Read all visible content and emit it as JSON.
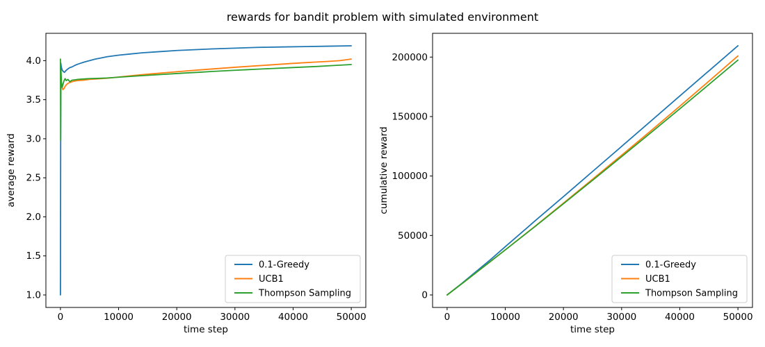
{
  "figure": {
    "title": "rewards for bandit problem with simulated environment",
    "background_color": "#ffffff",
    "text_color": "#000000",
    "series_colors": {
      "greedy": "#1f77b4",
      "ucb1": "#ff7f0e",
      "thompson": "#2ca02c"
    }
  },
  "chart_data": [
    {
      "id": "average-reward",
      "type": "line",
      "title": "",
      "xlabel": "time step",
      "ylabel": "average reward",
      "xlim": [
        -2500,
        52500
      ],
      "ylim": [
        0.84,
        4.35
      ],
      "grid": false,
      "legend_location": "lower right",
      "xticks": {
        "values": [
          0,
          10000,
          20000,
          30000,
          40000,
          50000
        ],
        "labels": [
          "0",
          "10000",
          "20000",
          "30000",
          "40000",
          "50000"
        ]
      },
      "yticks": {
        "values": [
          1.0,
          1.5,
          2.0,
          2.5,
          3.0,
          3.5,
          4.0
        ],
        "labels": [
          "1.0",
          "1.5",
          "2.0",
          "2.5",
          "3.0",
          "3.5",
          "4.0"
        ]
      },
      "series": [
        {
          "name": "0.1-Greedy",
          "color": "#1f77b4",
          "points": [
            [
              0,
              1.0
            ],
            [
              60,
              3.97
            ],
            [
              150,
              3.92
            ],
            [
              300,
              3.88
            ],
            [
              500,
              3.86
            ],
            [
              700,
              3.85
            ],
            [
              900,
              3.87
            ],
            [
              1200,
              3.89
            ],
            [
              1600,
              3.91
            ],
            [
              2000,
              3.92
            ],
            [
              2500,
              3.94
            ],
            [
              3000,
              3.955
            ],
            [
              4000,
              3.98
            ],
            [
              5000,
              4.0
            ],
            [
              6000,
              4.02
            ],
            [
              7000,
              4.035
            ],
            [
              8000,
              4.05
            ],
            [
              10000,
              4.07
            ],
            [
              12000,
              4.085
            ],
            [
              14000,
              4.1
            ],
            [
              17000,
              4.115
            ],
            [
              20000,
              4.13
            ],
            [
              23000,
              4.14
            ],
            [
              26000,
              4.15
            ],
            [
              30000,
              4.16
            ],
            [
              34000,
              4.17
            ],
            [
              38000,
              4.175
            ],
            [
              42000,
              4.18
            ],
            [
              46000,
              4.185
            ],
            [
              50000,
              4.19
            ]
          ]
        },
        {
          "name": "UCB1",
          "color": "#ff7f0e",
          "points": [
            [
              0,
              3.78
            ],
            [
              100,
              3.72
            ],
            [
              250,
              3.67
            ],
            [
              400,
              3.63
            ],
            [
              600,
              3.64
            ],
            [
              800,
              3.67
            ],
            [
              1000,
              3.69
            ],
            [
              1300,
              3.71
            ],
            [
              1600,
              3.72
            ],
            [
              2000,
              3.73
            ],
            [
              2500,
              3.74
            ],
            [
              3000,
              3.745
            ],
            [
              4000,
              3.75
            ],
            [
              5000,
              3.76
            ],
            [
              6000,
              3.765
            ],
            [
              8000,
              3.775
            ],
            [
              10000,
              3.79
            ],
            [
              12000,
              3.805
            ],
            [
              14000,
              3.82
            ],
            [
              16000,
              3.833
            ],
            [
              18000,
              3.846
            ],
            [
              20000,
              3.858
            ],
            [
              22000,
              3.87
            ],
            [
              24000,
              3.882
            ],
            [
              26000,
              3.893
            ],
            [
              28000,
              3.904
            ],
            [
              30000,
              3.915
            ],
            [
              32000,
              3.925
            ],
            [
              34000,
              3.935
            ],
            [
              36000,
              3.945
            ],
            [
              38000,
              3.955
            ],
            [
              40000,
              3.965
            ],
            [
              42000,
              3.974
            ],
            [
              44000,
              3.982
            ],
            [
              46000,
              3.99
            ],
            [
              48000,
              4.0
            ],
            [
              50000,
              4.02
            ]
          ]
        },
        {
          "name": "Thompson Sampling",
          "color": "#2ca02c",
          "points": [
            [
              0,
              4.02
            ],
            [
              40,
              2.98
            ],
            [
              90,
              3.88
            ],
            [
              180,
              3.72
            ],
            [
              300,
              3.66
            ],
            [
              450,
              3.7
            ],
            [
              600,
              3.74
            ],
            [
              800,
              3.77
            ],
            [
              1000,
              3.745
            ],
            [
              1300,
              3.76
            ],
            [
              1600,
              3.73
            ],
            [
              2000,
              3.75
            ],
            [
              2500,
              3.755
            ],
            [
              3000,
              3.76
            ],
            [
              4000,
              3.765
            ],
            [
              5000,
              3.77
            ],
            [
              6000,
              3.772
            ],
            [
              8000,
              3.778
            ],
            [
              10000,
              3.788
            ],
            [
              12000,
              3.798
            ],
            [
              14000,
              3.808
            ],
            [
              16000,
              3.817
            ],
            [
              18000,
              3.826
            ],
            [
              20000,
              3.835
            ],
            [
              22000,
              3.844
            ],
            [
              24000,
              3.852
            ],
            [
              26000,
              3.861
            ],
            [
              28000,
              3.869
            ],
            [
              30000,
              3.877
            ],
            [
              32000,
              3.884
            ],
            [
              34000,
              3.891
            ],
            [
              36000,
              3.898
            ],
            [
              40000,
              3.912
            ],
            [
              44000,
              3.925
            ],
            [
              47000,
              3.938
            ],
            [
              50000,
              3.95
            ]
          ]
        }
      ]
    },
    {
      "id": "cumulative-reward",
      "type": "line",
      "title": "",
      "xlabel": "time step",
      "ylabel": "cumulative reward",
      "xlim": [
        -2500,
        52500
      ],
      "ylim": [
        -10500,
        220000
      ],
      "grid": false,
      "legend_location": "lower right",
      "xticks": {
        "values": [
          0,
          10000,
          20000,
          30000,
          40000,
          50000
        ],
        "labels": [
          "0",
          "10000",
          "20000",
          "30000",
          "40000",
          "50000"
        ]
      },
      "yticks": {
        "values": [
          0,
          50000,
          100000,
          150000,
          200000
        ],
        "labels": [
          "0",
          "50000",
          "100000",
          "150000",
          "200000"
        ]
      },
      "series": [
        {
          "name": "0.1-Greedy",
          "color": "#1f77b4",
          "points": [
            [
              0,
              0
            ],
            [
              2500,
              9600
            ],
            [
              5000,
              19700
            ],
            [
              7500,
              29900
            ],
            [
              10000,
              40600
            ],
            [
              15000,
              61800
            ],
            [
              20000,
              82700
            ],
            [
              25000,
              103800
            ],
            [
              30000,
              124900
            ],
            [
              35000,
              146100
            ],
            [
              40000,
              167300
            ],
            [
              45000,
              188400
            ],
            [
              50000,
              209500
            ]
          ]
        },
        {
          "name": "UCB1",
          "color": "#ff7f0e",
          "points": [
            [
              0,
              0
            ],
            [
              2500,
              9300
            ],
            [
              5000,
              18800
            ],
            [
              7500,
              28300
            ],
            [
              10000,
              37900
            ],
            [
              15000,
              57300
            ],
            [
              20000,
              77200
            ],
            [
              25000,
              97300
            ],
            [
              30000,
              117500
            ],
            [
              35000,
              137900
            ],
            [
              40000,
              158700
            ],
            [
              45000,
              179700
            ],
            [
              50000,
              201000
            ]
          ]
        },
        {
          "name": "Thompson Sampling",
          "color": "#2ca02c",
          "points": [
            [
              0,
              0
            ],
            [
              2500,
              9350
            ],
            [
              5000,
              18850
            ],
            [
              7500,
              28350
            ],
            [
              10000,
              37900
            ],
            [
              15000,
              57100
            ],
            [
              20000,
              76700
            ],
            [
              25000,
              96400
            ],
            [
              30000,
              116300
            ],
            [
              35000,
              136300
            ],
            [
              40000,
              156500
            ],
            [
              45000,
              176900
            ],
            [
              50000,
              197500
            ]
          ]
        }
      ]
    }
  ]
}
